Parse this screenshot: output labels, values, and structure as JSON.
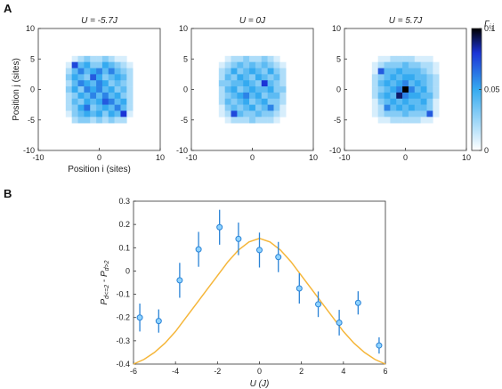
{
  "figure": {
    "panel_a_letter": "A",
    "panel_b_letter": "B"
  },
  "colors": {
    "heatmap_low": "#ffffff",
    "heatmap_mid": "#35aaf0",
    "heatmap_high": "#1b34d6",
    "heatmap_max": "#000000",
    "marker_fill": "#8fd3ff",
    "marker_edge": "#2a83d6",
    "errorbar": "#2a83d6",
    "theory_line": "#f5b63a"
  },
  "chart_data": [
    {
      "type": "heatmap",
      "title": "U = -5.7J",
      "xlabel": "Position i (sites)",
      "ylabel": "Position j (sites)",
      "xlim": [
        -10,
        10
      ],
      "ylim": [
        -10,
        10
      ],
      "xticks": [
        -10,
        0,
        10
      ],
      "yticks": [
        10,
        5,
        0,
        -5,
        -10
      ],
      "grid_min": -5,
      "grid_size": 11,
      "values": [
        [
          0,
          0.01,
          0.02,
          0.03,
          0.02,
          0.02,
          0.03,
          0.02,
          0.01,
          0.01,
          0
        ],
        [
          0.01,
          0.03,
          0.04,
          0.05,
          0.03,
          0.03,
          0.05,
          0.04,
          0.03,
          0.02,
          0.01
        ],
        [
          0.02,
          0.04,
          0.06,
          0.04,
          0.05,
          0.06,
          0.04,
          0.06,
          0.04,
          0.03,
          0.02
        ],
        [
          0.03,
          0.05,
          0.04,
          0.03,
          0.07,
          0.05,
          0.03,
          0.04,
          0.05,
          0.04,
          0.02
        ],
        [
          0.02,
          0.04,
          0.06,
          0.05,
          0.04,
          0.06,
          0.05,
          0.03,
          0.04,
          0.03,
          0.02
        ],
        [
          0.03,
          0.05,
          0.03,
          0.06,
          0.05,
          0.07,
          0.04,
          0.05,
          0.03,
          0.04,
          0.02
        ],
        [
          0.02,
          0.03,
          0.05,
          0.04,
          0.06,
          0.04,
          0.06,
          0.04,
          0.05,
          0.03,
          0.02
        ],
        [
          0.02,
          0.04,
          0.03,
          0.05,
          0.04,
          0.05,
          0.03,
          0.06,
          0.04,
          0.05,
          0.02
        ],
        [
          0.02,
          0.03,
          0.05,
          0.04,
          0.03,
          0.04,
          0.05,
          0.04,
          0.06,
          0.04,
          0.02
        ],
        [
          0.01,
          0.03,
          0.04,
          0.05,
          0.04,
          0.05,
          0.03,
          0.05,
          0.04,
          0.03,
          0.01
        ],
        [
          0.0,
          0.02,
          0.03,
          0.03,
          0.02,
          0.03,
          0.02,
          0.03,
          0.02,
          0.02,
          0.0
        ]
      ],
      "hotspots": [
        [
          -4,
          4,
          0.075
        ],
        [
          1,
          -2,
          0.07
        ],
        [
          4,
          -4,
          0.08
        ],
        [
          -2,
          -3,
          0.065
        ],
        [
          0,
          0,
          0.06
        ]
      ]
    },
    {
      "type": "heatmap",
      "title": "U = 0J",
      "xlim": [
        -10,
        10
      ],
      "ylim": [
        -10,
        10
      ],
      "xticks": [
        -10,
        0,
        10
      ],
      "yticks": [
        10,
        5,
        0,
        -5,
        -10
      ],
      "grid_min": -5,
      "grid_size": 11,
      "values": [
        [
          0,
          0.01,
          0.02,
          0.02,
          0.03,
          0.02,
          0.02,
          0.03,
          0.02,
          0.01,
          0
        ],
        [
          0.01,
          0.02,
          0.03,
          0.04,
          0.03,
          0.04,
          0.03,
          0.04,
          0.03,
          0.02,
          0.01
        ],
        [
          0.02,
          0.03,
          0.05,
          0.03,
          0.04,
          0.05,
          0.04,
          0.03,
          0.05,
          0.03,
          0.02
        ],
        [
          0.02,
          0.04,
          0.03,
          0.05,
          0.04,
          0.03,
          0.05,
          0.04,
          0.03,
          0.04,
          0.02
        ],
        [
          0.03,
          0.03,
          0.04,
          0.04,
          0.05,
          0.04,
          0.03,
          0.05,
          0.04,
          0.03,
          0.02
        ],
        [
          0.02,
          0.04,
          0.05,
          0.03,
          0.04,
          0.05,
          0.04,
          0.04,
          0.05,
          0.03,
          0.03
        ],
        [
          0.02,
          0.03,
          0.04,
          0.05,
          0.03,
          0.04,
          0.05,
          0.03,
          0.04,
          0.04,
          0.02
        ],
        [
          0.02,
          0.04,
          0.03,
          0.04,
          0.05,
          0.03,
          0.04,
          0.05,
          0.03,
          0.03,
          0.02
        ],
        [
          0.01,
          0.03,
          0.04,
          0.03,
          0.04,
          0.05,
          0.03,
          0.04,
          0.04,
          0.03,
          0.01
        ],
        [
          0.01,
          0.02,
          0.03,
          0.04,
          0.03,
          0.03,
          0.04,
          0.03,
          0.03,
          0.02,
          0.01
        ],
        [
          0,
          0.01,
          0.02,
          0.02,
          0.02,
          0.03,
          0.02,
          0.02,
          0.02,
          0.01,
          0
        ]
      ],
      "hotspots": [
        [
          2,
          1,
          0.08
        ],
        [
          -3,
          -4,
          0.075
        ],
        [
          -1,
          -1,
          0.06
        ],
        [
          3,
          -3,
          0.06
        ]
      ]
    },
    {
      "type": "heatmap",
      "title": "U = 5.7J",
      "xlim": [
        -10,
        10
      ],
      "ylim": [
        -10,
        10
      ],
      "xticks": [
        -10,
        0,
        10
      ],
      "yticks": [
        10,
        5,
        0,
        -5,
        -10
      ],
      "grid_min": -5,
      "grid_size": 11,
      "values": [
        [
          0,
          0.01,
          0.01,
          0.02,
          0.02,
          0.02,
          0.02,
          0.01,
          0.01,
          0.01,
          0
        ],
        [
          0.01,
          0.02,
          0.03,
          0.03,
          0.03,
          0.04,
          0.03,
          0.03,
          0.02,
          0.02,
          0.01
        ],
        [
          0.01,
          0.03,
          0.04,
          0.04,
          0.05,
          0.04,
          0.04,
          0.04,
          0.03,
          0.02,
          0.01
        ],
        [
          0.02,
          0.03,
          0.04,
          0.05,
          0.04,
          0.05,
          0.05,
          0.04,
          0.04,
          0.03,
          0.02
        ],
        [
          0.02,
          0.04,
          0.05,
          0.04,
          0.05,
          0.06,
          0.04,
          0.05,
          0.04,
          0.03,
          0.02
        ],
        [
          0.02,
          0.03,
          0.04,
          0.05,
          0.06,
          0.05,
          0.06,
          0.04,
          0.05,
          0.03,
          0.02
        ],
        [
          0.02,
          0.04,
          0.05,
          0.04,
          0.05,
          0.06,
          0.05,
          0.05,
          0.04,
          0.04,
          0.02
        ],
        [
          0.01,
          0.03,
          0.04,
          0.05,
          0.04,
          0.05,
          0.04,
          0.04,
          0.05,
          0.03,
          0.01
        ],
        [
          0.01,
          0.02,
          0.03,
          0.04,
          0.05,
          0.04,
          0.05,
          0.04,
          0.04,
          0.03,
          0.01
        ],
        [
          0.01,
          0.02,
          0.03,
          0.03,
          0.03,
          0.04,
          0.03,
          0.03,
          0.03,
          0.02,
          0.01
        ],
        [
          0,
          0.01,
          0.01,
          0.02,
          0.02,
          0.02,
          0.02,
          0.02,
          0.01,
          0.01,
          0
        ]
      ],
      "hotspots": [
        [
          0,
          0,
          0.1
        ],
        [
          -1,
          -1,
          0.09
        ],
        [
          -4,
          3,
          0.07
        ],
        [
          4,
          -4,
          0.07
        ],
        [
          -3,
          -3,
          0.06
        ]
      ]
    },
    {
      "type": "colorbar",
      "label": "Γ",
      "label_sub": "i,j",
      "range": [
        0,
        0.1
      ],
      "ticks": [
        0,
        0.05,
        0.1
      ],
      "tick_labels": [
        "0",
        "0.05",
        "0.1"
      ]
    },
    {
      "type": "scatter",
      "xlabel": "U (J)",
      "ylabel_main": "P",
      "ylabel_sub1": "d<=2",
      "ylabel_mid": " - P",
      "ylabel_sub2": "d>2",
      "xlim": [
        -6,
        6
      ],
      "ylim": [
        -0.4,
        0.3
      ],
      "xticks": [
        -6,
        -4,
        -2,
        0,
        2,
        4,
        6
      ],
      "yticks": [
        0.3,
        0.2,
        0.1,
        0,
        -0.1,
        -0.2,
        -0.3,
        -0.4
      ],
      "ytick_labels": [
        "0.3",
        "0.2",
        "0.1",
        "0",
        "-0.1",
        "-0.2",
        "-0.3",
        "-0.4"
      ],
      "series": [
        {
          "kind": "errorbar",
          "x": [
            -5.7,
            -4.8,
            -3.8,
            -2.9,
            -1.9,
            -1.0,
            0.0,
            0.9,
            1.9,
            2.8,
            3.8,
            4.7,
            5.7
          ],
          "y": [
            -0.2,
            -0.215,
            -0.04,
            0.093,
            0.188,
            0.138,
            0.09,
            0.06,
            -0.075,
            -0.143,
            -0.222,
            -0.137,
            -0.32
          ],
          "err": [
            0.06,
            0.05,
            0.075,
            0.075,
            0.075,
            0.07,
            0.075,
            0.065,
            0.065,
            0.055,
            0.055,
            0.05,
            0.035
          ]
        },
        {
          "kind": "line",
          "x": [
            -6,
            -5.5,
            -5,
            -4.5,
            -4,
            -3.5,
            -3,
            -2.5,
            -2,
            -1.5,
            -1,
            -0.5,
            0,
            0.5,
            1,
            1.5,
            2,
            2.5,
            3,
            3.5,
            4,
            4.5,
            5,
            5.5,
            6
          ],
          "y": [
            -0.4,
            -0.38,
            -0.35,
            -0.31,
            -0.26,
            -0.2,
            -0.14,
            -0.08,
            -0.02,
            0.04,
            0.09,
            0.125,
            0.14,
            0.125,
            0.09,
            0.04,
            -0.02,
            -0.08,
            -0.14,
            -0.2,
            -0.26,
            -0.31,
            -0.35,
            -0.38,
            -0.4
          ]
        }
      ]
    }
  ]
}
